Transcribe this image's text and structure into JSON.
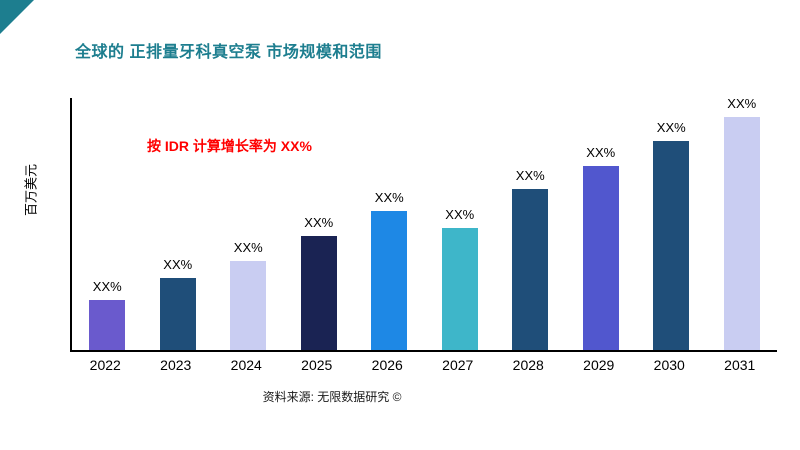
{
  "page": {
    "title": "全球的 正排量牙科真空泵 市场规模和范围",
    "annotation": "按 IDR 计算增长率为 XX%",
    "ylabel": "百万美元",
    "source": "资料来源: 无限数据研究 ©",
    "accent_color": "#1d7e8f",
    "annotation_color": "#ff0000"
  },
  "chart_data": {
    "type": "bar",
    "title": "全球的 正排量牙科真空泵 市场规模和范围",
    "xlabel": "",
    "ylabel": "百万美元",
    "categories": [
      "2022",
      "2023",
      "2024",
      "2025",
      "2026",
      "2027",
      "2028",
      "2029",
      "2030",
      "2031"
    ],
    "values": [
      50,
      71,
      88,
      113,
      138,
      121,
      160,
      183,
      207,
      231
    ],
    "bar_labels": [
      "XX%",
      "XX%",
      "XX%",
      "XX%",
      "XX%",
      "XX%",
      "XX%",
      "XX%",
      "XX%",
      "XX%"
    ],
    "bar_colors": [
      "#6a5acd",
      "#1f4e79",
      "#c9cdf2",
      "#1a2353",
      "#1e88e5",
      "#3eb6c9",
      "#1f4e79",
      "#5157ce",
      "#1f4e79",
      "#c9cdf2"
    ],
    "ylim": [
      0,
      250
    ],
    "grid": false,
    "legend": false,
    "annotations": [
      "按 IDR 计算增长率为 XX%"
    ]
  }
}
